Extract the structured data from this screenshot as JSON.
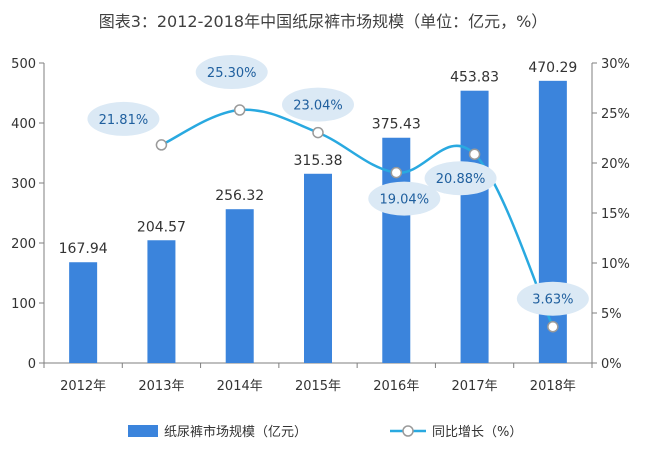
{
  "chart_data": {
    "type": "bar",
    "title": "图表3：2012-2018年中国纸尿裤市场规模（单位：亿元，%）",
    "categories": [
      "2012年",
      "2013年",
      "2014年",
      "2015年",
      "2016年",
      "2017年",
      "2018年"
    ],
    "series": [
      {
        "name": "纸尿裤市场规模（亿元）",
        "type": "bar",
        "axis": "left",
        "values": [
          167.94,
          204.57,
          256.32,
          315.38,
          375.43,
          453.83,
          470.29
        ],
        "labels": [
          "167.94",
          "204.57",
          "256.32",
          "315.38",
          "375.43",
          "453.83",
          "470.29"
        ]
      },
      {
        "name": "同比增长（%）",
        "type": "line",
        "axis": "right",
        "values": [
          null,
          21.81,
          25.3,
          23.04,
          19.04,
          20.88,
          3.63
        ],
        "labels": [
          "",
          "21.81%",
          "25.30%",
          "23.04%",
          "19.04%",
          "20.88%",
          "3.63%"
        ]
      }
    ],
    "ylim": [
      0,
      500
    ],
    "yticks": [
      "0",
      "100",
      "200",
      "300",
      "400",
      "500"
    ],
    "y2lim": [
      0,
      30
    ],
    "y2ticks": [
      "0%",
      "5%",
      "10%",
      "15%",
      "20%",
      "25%",
      "30%"
    ],
    "grid": false,
    "legend_position": "bottom",
    "colors": {
      "bar": "#3b84dc",
      "line": "#29a9e0",
      "bubble": "#dbe9f5"
    }
  }
}
